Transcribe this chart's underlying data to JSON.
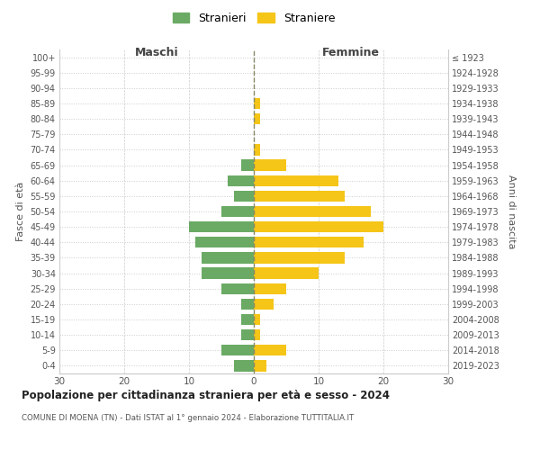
{
  "age_groups": [
    "0-4",
    "5-9",
    "10-14",
    "15-19",
    "20-24",
    "25-29",
    "30-34",
    "35-39",
    "40-44",
    "45-49",
    "50-54",
    "55-59",
    "60-64",
    "65-69",
    "70-74",
    "75-79",
    "80-84",
    "85-89",
    "90-94",
    "95-99",
    "100+"
  ],
  "birth_years": [
    "2019-2023",
    "2014-2018",
    "2009-2013",
    "2004-2008",
    "1999-2003",
    "1994-1998",
    "1989-1993",
    "1984-1988",
    "1979-1983",
    "1974-1978",
    "1969-1973",
    "1964-1968",
    "1959-1963",
    "1954-1958",
    "1949-1953",
    "1944-1948",
    "1939-1943",
    "1934-1938",
    "1929-1933",
    "1924-1928",
    "≤ 1923"
  ],
  "males": [
    3,
    5,
    2,
    2,
    2,
    5,
    8,
    8,
    9,
    10,
    5,
    3,
    4,
    2,
    0,
    0,
    0,
    0,
    0,
    0,
    0
  ],
  "females": [
    2,
    5,
    1,
    1,
    3,
    5,
    10,
    14,
    17,
    20,
    18,
    14,
    13,
    5,
    1,
    0,
    1,
    1,
    0,
    0,
    0
  ],
  "male_color": "#6aaa64",
  "female_color": "#f5c518",
  "title": "Popolazione per cittadinanza straniera per età e sesso - 2024",
  "subtitle": "COMUNE DI MOENA (TN) - Dati ISTAT al 1° gennaio 2024 - Elaborazione TUTTITALIA.IT",
  "legend_male": "Stranieri",
  "legend_female": "Straniere",
  "xlabel_left": "Maschi",
  "xlabel_right": "Femmine",
  "ylabel_left": "Fasce di età",
  "ylabel_right": "Anni di nascita",
  "xlim": 30,
  "background_color": "#ffffff",
  "grid_color": "#cccccc"
}
